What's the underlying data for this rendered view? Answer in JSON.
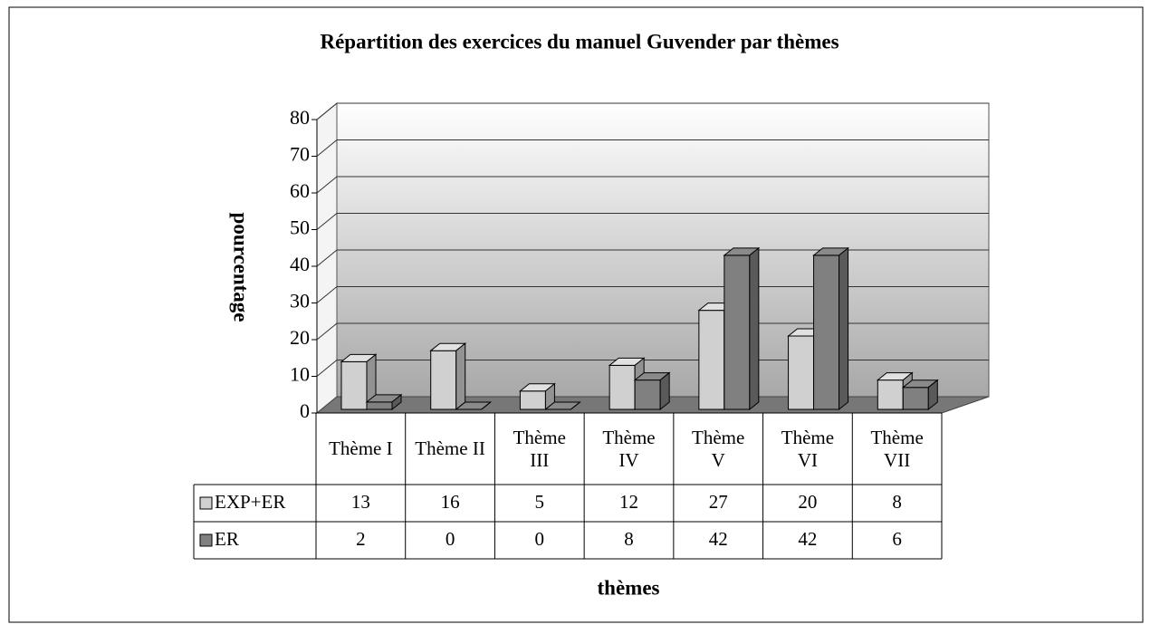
{
  "chart_data": {
    "type": "bar",
    "title": "Répartition des exercices du manuel Guvender par thèmes",
    "ylabel": "pourcentage",
    "xlabel": "thèmes",
    "categories": [
      "Thème I",
      "Thème II",
      "Thème III",
      "Thème IV",
      "Thème V",
      "Thème VI",
      "Thème VII"
    ],
    "series": [
      {
        "name": "EXP+ER",
        "color": "#d0d0d0",
        "values": [
          13,
          16,
          5,
          12,
          27,
          20,
          8
        ]
      },
      {
        "name": "ER",
        "color": "#808080",
        "values": [
          2,
          0,
          0,
          8,
          42,
          42,
          6
        ]
      }
    ],
    "ylim": [
      0,
      80
    ],
    "yticks": [
      0,
      10,
      20,
      30,
      40,
      50,
      60,
      70,
      80
    ],
    "grid": true
  }
}
